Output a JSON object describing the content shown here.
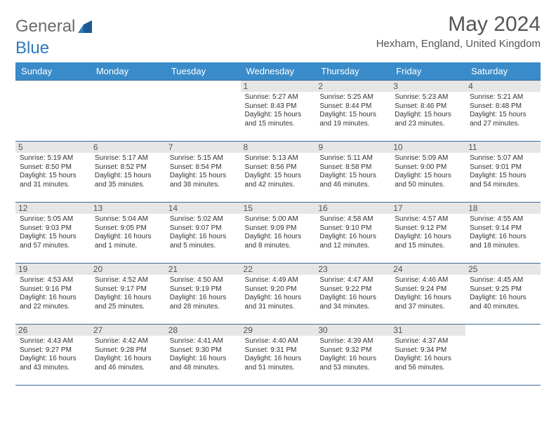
{
  "logo": {
    "text1": "General",
    "text2": "Blue"
  },
  "title": "May 2024",
  "subtitle": "Hexham, England, United Kingdom",
  "colors": {
    "header_bg": "#3a8bc9",
    "header_text": "#ffffff",
    "row_border": "#3a6b98",
    "daynum_bg": "#e6e6e6",
    "body_text": "#333333",
    "title_text": "#555555",
    "logo_gray": "#6b6b6b",
    "logo_blue": "#2f78bd"
  },
  "weekdays": [
    "Sunday",
    "Monday",
    "Tuesday",
    "Wednesday",
    "Thursday",
    "Friday",
    "Saturday"
  ],
  "weeks": [
    [
      {
        "day": "",
        "sunrise": "",
        "sunset": "",
        "daylight": ""
      },
      {
        "day": "",
        "sunrise": "",
        "sunset": "",
        "daylight": ""
      },
      {
        "day": "",
        "sunrise": "",
        "sunset": "",
        "daylight": ""
      },
      {
        "day": "1",
        "sunrise": "Sunrise: 5:27 AM",
        "sunset": "Sunset: 8:43 PM",
        "daylight": "Daylight: 15 hours and 15 minutes."
      },
      {
        "day": "2",
        "sunrise": "Sunrise: 5:25 AM",
        "sunset": "Sunset: 8:44 PM",
        "daylight": "Daylight: 15 hours and 19 minutes."
      },
      {
        "day": "3",
        "sunrise": "Sunrise: 5:23 AM",
        "sunset": "Sunset: 8:46 PM",
        "daylight": "Daylight: 15 hours and 23 minutes."
      },
      {
        "day": "4",
        "sunrise": "Sunrise: 5:21 AM",
        "sunset": "Sunset: 8:48 PM",
        "daylight": "Daylight: 15 hours and 27 minutes."
      }
    ],
    [
      {
        "day": "5",
        "sunrise": "Sunrise: 5:19 AM",
        "sunset": "Sunset: 8:50 PM",
        "daylight": "Daylight: 15 hours and 31 minutes."
      },
      {
        "day": "6",
        "sunrise": "Sunrise: 5:17 AM",
        "sunset": "Sunset: 8:52 PM",
        "daylight": "Daylight: 15 hours and 35 minutes."
      },
      {
        "day": "7",
        "sunrise": "Sunrise: 5:15 AM",
        "sunset": "Sunset: 8:54 PM",
        "daylight": "Daylight: 15 hours and 38 minutes."
      },
      {
        "day": "8",
        "sunrise": "Sunrise: 5:13 AM",
        "sunset": "Sunset: 8:56 PM",
        "daylight": "Daylight: 15 hours and 42 minutes."
      },
      {
        "day": "9",
        "sunrise": "Sunrise: 5:11 AM",
        "sunset": "Sunset: 8:58 PM",
        "daylight": "Daylight: 15 hours and 46 minutes."
      },
      {
        "day": "10",
        "sunrise": "Sunrise: 5:09 AM",
        "sunset": "Sunset: 9:00 PM",
        "daylight": "Daylight: 15 hours and 50 minutes."
      },
      {
        "day": "11",
        "sunrise": "Sunrise: 5:07 AM",
        "sunset": "Sunset: 9:01 PM",
        "daylight": "Daylight: 15 hours and 54 minutes."
      }
    ],
    [
      {
        "day": "12",
        "sunrise": "Sunrise: 5:05 AM",
        "sunset": "Sunset: 9:03 PM",
        "daylight": "Daylight: 15 hours and 57 minutes."
      },
      {
        "day": "13",
        "sunrise": "Sunrise: 5:04 AM",
        "sunset": "Sunset: 9:05 PM",
        "daylight": "Daylight: 16 hours and 1 minute."
      },
      {
        "day": "14",
        "sunrise": "Sunrise: 5:02 AM",
        "sunset": "Sunset: 9:07 PM",
        "daylight": "Daylight: 16 hours and 5 minutes."
      },
      {
        "day": "15",
        "sunrise": "Sunrise: 5:00 AM",
        "sunset": "Sunset: 9:09 PM",
        "daylight": "Daylight: 16 hours and 8 minutes."
      },
      {
        "day": "16",
        "sunrise": "Sunrise: 4:58 AM",
        "sunset": "Sunset: 9:10 PM",
        "daylight": "Daylight: 16 hours and 12 minutes."
      },
      {
        "day": "17",
        "sunrise": "Sunrise: 4:57 AM",
        "sunset": "Sunset: 9:12 PM",
        "daylight": "Daylight: 16 hours and 15 minutes."
      },
      {
        "day": "18",
        "sunrise": "Sunrise: 4:55 AM",
        "sunset": "Sunset: 9:14 PM",
        "daylight": "Daylight: 16 hours and 18 minutes."
      }
    ],
    [
      {
        "day": "19",
        "sunrise": "Sunrise: 4:53 AM",
        "sunset": "Sunset: 9:16 PM",
        "daylight": "Daylight: 16 hours and 22 minutes."
      },
      {
        "day": "20",
        "sunrise": "Sunrise: 4:52 AM",
        "sunset": "Sunset: 9:17 PM",
        "daylight": "Daylight: 16 hours and 25 minutes."
      },
      {
        "day": "21",
        "sunrise": "Sunrise: 4:50 AM",
        "sunset": "Sunset: 9:19 PM",
        "daylight": "Daylight: 16 hours and 28 minutes."
      },
      {
        "day": "22",
        "sunrise": "Sunrise: 4:49 AM",
        "sunset": "Sunset: 9:20 PM",
        "daylight": "Daylight: 16 hours and 31 minutes."
      },
      {
        "day": "23",
        "sunrise": "Sunrise: 4:47 AM",
        "sunset": "Sunset: 9:22 PM",
        "daylight": "Daylight: 16 hours and 34 minutes."
      },
      {
        "day": "24",
        "sunrise": "Sunrise: 4:46 AM",
        "sunset": "Sunset: 9:24 PM",
        "daylight": "Daylight: 16 hours and 37 minutes."
      },
      {
        "day": "25",
        "sunrise": "Sunrise: 4:45 AM",
        "sunset": "Sunset: 9:25 PM",
        "daylight": "Daylight: 16 hours and 40 minutes."
      }
    ],
    [
      {
        "day": "26",
        "sunrise": "Sunrise: 4:43 AM",
        "sunset": "Sunset: 9:27 PM",
        "daylight": "Daylight: 16 hours and 43 minutes."
      },
      {
        "day": "27",
        "sunrise": "Sunrise: 4:42 AM",
        "sunset": "Sunset: 9:28 PM",
        "daylight": "Daylight: 16 hours and 46 minutes."
      },
      {
        "day": "28",
        "sunrise": "Sunrise: 4:41 AM",
        "sunset": "Sunset: 9:30 PM",
        "daylight": "Daylight: 16 hours and 48 minutes."
      },
      {
        "day": "29",
        "sunrise": "Sunrise: 4:40 AM",
        "sunset": "Sunset: 9:31 PM",
        "daylight": "Daylight: 16 hours and 51 minutes."
      },
      {
        "day": "30",
        "sunrise": "Sunrise: 4:39 AM",
        "sunset": "Sunset: 9:32 PM",
        "daylight": "Daylight: 16 hours and 53 minutes."
      },
      {
        "day": "31",
        "sunrise": "Sunrise: 4:37 AM",
        "sunset": "Sunset: 9:34 PM",
        "daylight": "Daylight: 16 hours and 56 minutes."
      },
      {
        "day": "",
        "sunrise": "",
        "sunset": "",
        "daylight": ""
      }
    ]
  ]
}
